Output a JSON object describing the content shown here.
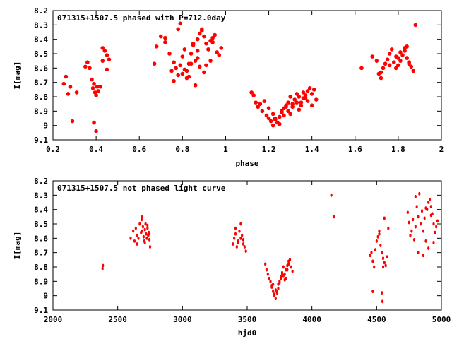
{
  "chart_data": [
    {
      "type": "scatter",
      "title": "071315+1507.5 phased with P=712.0day",
      "xlabel": "phase",
      "ylabel": "I[mag]",
      "xlim": [
        0.2,
        2.0
      ],
      "ylim": [
        9.1,
        8.2
      ],
      "y_inverted": true,
      "grid": false,
      "marker_color": "#ff0000",
      "xticks": [
        "0.2",
        "0.4",
        "0.6",
        "0.8",
        "1",
        "1.2",
        "1.4",
        "1.6",
        "1.8",
        "2"
      ],
      "yticks": [
        "8.2",
        "8.3",
        "8.4",
        "8.5",
        "8.6",
        "8.7",
        "8.8",
        "8.9",
        "9",
        "9.1"
      ],
      "series": [
        {
          "x": [
            0.25,
            0.26,
            0.27,
            0.28,
            0.29,
            0.31,
            0.35,
            0.36,
            0.37,
            0.38,
            0.385,
            0.39,
            0.395,
            0.4,
            0.405,
            0.41,
            0.42,
            0.39,
            0.4,
            0.43,
            0.44,
            0.45,
            0.46,
            0.43,
            0.45,
            0.67,
            0.68,
            0.7,
            0.72,
            0.74,
            0.76,
            0.77,
            0.78,
            0.79,
            0.8,
            0.81,
            0.82,
            0.83,
            0.84,
            0.85,
            0.86,
            0.87,
            0.88,
            0.89,
            0.9,
            0.91,
            0.92,
            0.93,
            0.94,
            0.95,
            0.76,
            0.79,
            0.83,
            0.87,
            0.88,
            0.9,
            0.92,
            0.94,
            0.96,
            0.97,
            0.98,
            0.72,
            0.75,
            0.78,
            0.81,
            0.84,
            0.86,
            0.89,
            0.91,
            0.93,
            0.8,
            0.82,
            0.85,
            0.87,
            1.12,
            1.13,
            1.14,
            1.15,
            1.16,
            1.17,
            1.18,
            1.19,
            1.2,
            1.21,
            1.22,
            1.23,
            1.24,
            1.25,
            1.26,
            1.27,
            1.28,
            1.29,
            1.3,
            1.31,
            1.32,
            1.33,
            1.34,
            1.35,
            1.36,
            1.37,
            1.38,
            1.39,
            1.4,
            1.41,
            1.42,
            1.2,
            1.22,
            1.25,
            1.27,
            1.29,
            1.31,
            1.34,
            1.36,
            1.38,
            1.4,
            1.23,
            1.26,
            1.28,
            1.3,
            1.33,
            1.35,
            1.37,
            1.63,
            1.68,
            1.7,
            1.71,
            1.72,
            1.73,
            1.74,
            1.75,
            1.76,
            1.77,
            1.78,
            1.79,
            1.8,
            1.81,
            1.82,
            1.83,
            1.84,
            1.85,
            1.86,
            1.87,
            1.88,
            1.79,
            1.81,
            1.83,
            1.85,
            1.72,
            1.76,
            1.8,
            1.84
          ],
          "y": [
            8.71,
            8.66,
            8.78,
            8.73,
            8.97,
            8.77,
            8.59,
            8.56,
            8.6,
            8.68,
            8.74,
            8.71,
            8.77,
            8.79,
            8.73,
            8.76,
            8.73,
            8.98,
            9.04,
            8.55,
            8.48,
            8.51,
            8.54,
            8.46,
            8.61,
            8.57,
            8.45,
            8.38,
            8.42,
            8.5,
            8.56,
            8.6,
            8.65,
            8.58,
            8.52,
            8.47,
            8.62,
            8.57,
            8.5,
            8.44,
            8.55,
            8.4,
            8.36,
            8.33,
            8.38,
            8.43,
            8.47,
            8.41,
            8.39,
            8.37,
            8.69,
            8.29,
            8.66,
            8.53,
            8.59,
            8.63,
            8.47,
            8.42,
            8.49,
            8.51,
            8.46,
            8.39,
            8.62,
            8.33,
            8.61,
            8.57,
            8.72,
            8.34,
            8.58,
            8.55,
            8.64,
            8.67,
            8.43,
            8.48,
            8.77,
            8.79,
            8.84,
            8.87,
            8.85,
            8.9,
            8.83,
            8.93,
            8.95,
            8.97,
            9.0,
            8.96,
            8.98,
            8.94,
            8.91,
            8.88,
            8.86,
            8.84,
            8.8,
            8.87,
            8.82,
            8.84,
            8.89,
            8.86,
            8.81,
            8.79,
            8.76,
            8.74,
            8.78,
            8.75,
            8.82,
            8.88,
            8.92,
            8.99,
            8.93,
            8.9,
            8.85,
            8.8,
            8.77,
            8.83,
            8.86,
            8.95,
            8.9,
            8.87,
            8.92,
            8.78,
            8.84,
            8.81,
            8.6,
            8.52,
            8.55,
            8.64,
            8.67,
            8.6,
            8.57,
            8.54,
            8.5,
            8.47,
            8.56,
            8.52,
            8.58,
            8.55,
            8.51,
            8.48,
            8.53,
            8.56,
            8.59,
            8.62,
            8.3,
            8.6,
            8.49,
            8.46,
            8.57,
            8.63,
            8.58,
            8.53,
            8.45
          ]
        }
      ]
    },
    {
      "type": "scatter",
      "title": "071315+1507.5 not phased light curve",
      "xlabel": "hjd0",
      "ylabel": "I[mag]",
      "xlim": [
        2000,
        5000
      ],
      "ylim": [
        9.1,
        8.2
      ],
      "y_inverted": true,
      "grid": false,
      "marker_color": "#ff0000",
      "xticks": [
        "2000",
        "2500",
        "3000",
        "3500",
        "4000",
        "4500",
        "5000"
      ],
      "yticks": [
        "8.2",
        "8.3",
        "8.4",
        "8.5",
        "8.6",
        "8.7",
        "8.8",
        "8.9",
        "9",
        "9.1"
      ],
      "series": [
        {
          "x": [
            2383,
            2386,
            2600,
            2620,
            2630,
            2640,
            2650,
            2660,
            2670,
            2680,
            2685,
            2690,
            2695,
            2700,
            2705,
            2710,
            2715,
            2720,
            2725,
            2730,
            2735,
            2740,
            2745,
            2750,
            2650,
            2690,
            2710,
            2730,
            2745,
            3390,
            3400,
            3410,
            3420,
            3430,
            3440,
            3450,
            3460,
            3470,
            3480,
            3490,
            3410,
            3430,
            3450,
            3470,
            3640,
            3650,
            3660,
            3670,
            3680,
            3690,
            3700,
            3710,
            3720,
            3730,
            3740,
            3750,
            3760,
            3770,
            3780,
            3790,
            3800,
            3810,
            3820,
            3830,
            3840,
            3850,
            3700,
            3720,
            3740,
            3760,
            3780,
            3800,
            3820,
            3690,
            3710,
            3730,
            3750,
            3770,
            3790,
            3810,
            4150,
            4170,
            4450,
            4460,
            4470,
            4480,
            4490,
            4500,
            4510,
            4520,
            4530,
            4540,
            4550,
            4560,
            4570,
            4580,
            4590,
            4520,
            4540,
            4560,
            4470,
            4545,
            4550,
            4740,
            4750,
            4760,
            4770,
            4780,
            4790,
            4800,
            4810,
            4820,
            4830,
            4840,
            4850,
            4860,
            4870,
            4880,
            4890,
            4900,
            4910,
            4920,
            4930,
            4940,
            4950,
            4960,
            4970,
            4820,
            4860,
            4900,
            4940,
            4800,
            4880,
            4920
          ],
          "y": [
            8.81,
            8.79,
            8.6,
            8.55,
            8.62,
            8.53,
            8.58,
            8.6,
            8.5,
            8.56,
            8.47,
            8.55,
            8.52,
            8.59,
            8.62,
            8.54,
            8.5,
            8.57,
            8.6,
            8.53,
            8.58,
            8.56,
            8.61,
            8.66,
            8.64,
            8.45,
            8.63,
            8.51,
            8.57,
            8.64,
            8.6,
            8.57,
            8.66,
            8.62,
            8.55,
            8.5,
            8.58,
            8.61,
            8.66,
            8.69,
            8.53,
            8.63,
            8.6,
            8.64,
            8.78,
            8.82,
            8.85,
            8.88,
            8.9,
            8.93,
            8.97,
            9.0,
            9.02,
            8.98,
            8.95,
            8.9,
            8.87,
            8.84,
            8.8,
            8.85,
            8.88,
            8.82,
            8.78,
            8.75,
            8.8,
            8.83,
            8.92,
            8.96,
            8.92,
            8.88,
            8.86,
            8.82,
            8.76,
            8.94,
            8.99,
            8.97,
            8.91,
            8.85,
            8.89,
            8.79,
            8.3,
            8.45,
            8.72,
            8.7,
            8.76,
            8.8,
            8.68,
            8.62,
            8.59,
            8.57,
            8.65,
            8.7,
            8.74,
            8.77,
            8.79,
            8.73,
            8.53,
            8.55,
            8.98,
            8.46,
            8.97,
            9.04,
            8.8,
            8.42,
            8.49,
            8.58,
            8.55,
            8.47,
            8.61,
            8.52,
            8.38,
            8.45,
            8.29,
            8.5,
            8.41,
            8.55,
            8.46,
            8.62,
            8.4,
            8.35,
            8.33,
            8.38,
            8.43,
            8.5,
            8.56,
            8.52,
            8.48,
            8.7,
            8.72,
            8.67,
            8.63,
            8.31,
            8.39,
            8.44
          ]
        }
      ]
    }
  ]
}
